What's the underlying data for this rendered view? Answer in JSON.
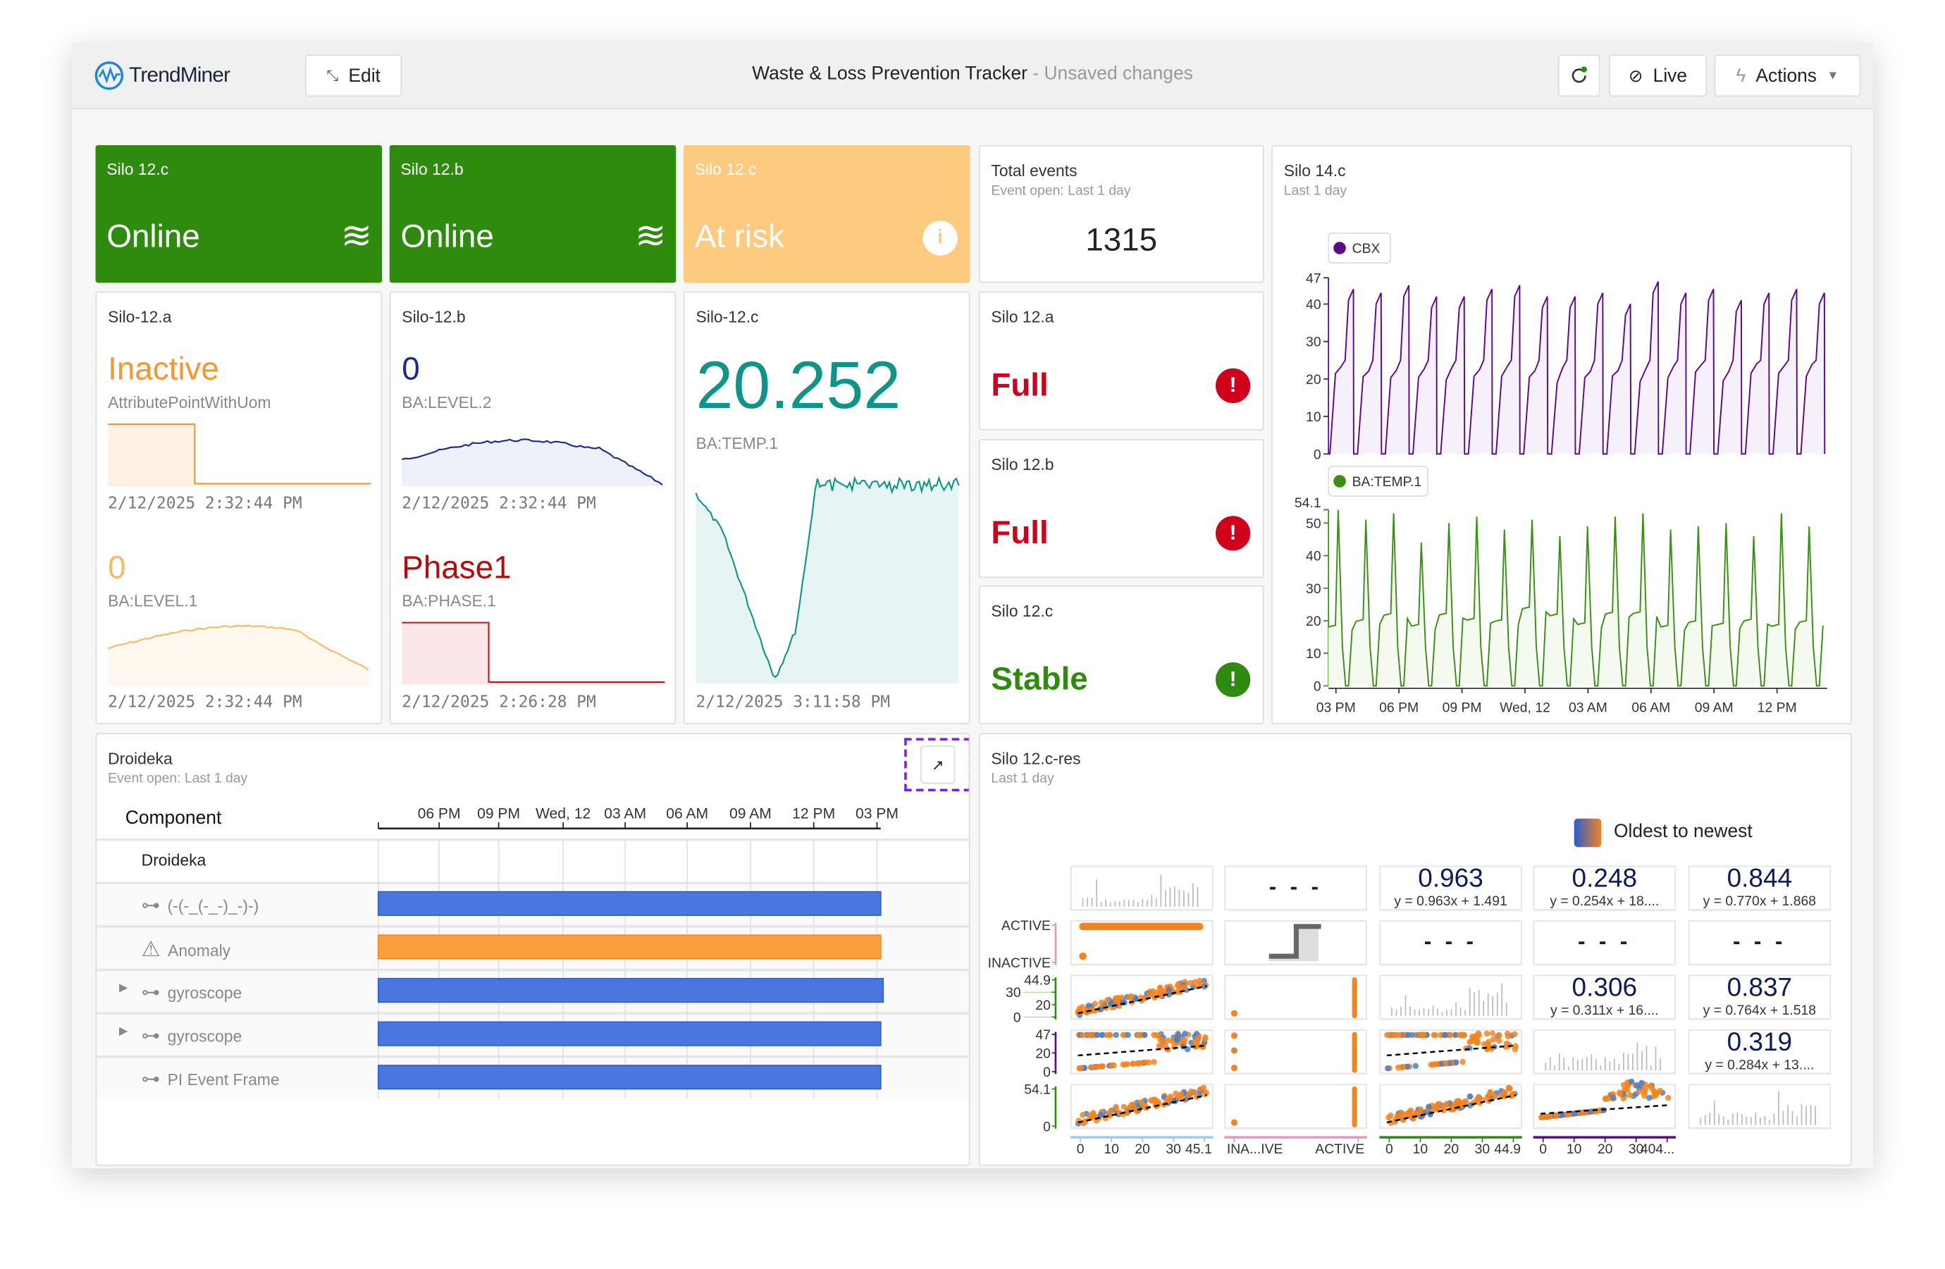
{
  "header": {
    "logo": "TrendMiner",
    "edit_label": "Edit",
    "title": "Waste & Loss Prevention Tracker",
    "status": "- Unsaved changes",
    "live_label": "Live",
    "actions_label": "Actions"
  },
  "colors": {
    "green": "#2e8b0e",
    "orange_tile": "#fdcb80",
    "orange": "#f7962f",
    "red": "#d0021b",
    "teal": "#0e9488",
    "navy": "#1a2a8c",
    "purple": "#5c0a8a",
    "bar_blue": "#4a76e0",
    "bar_orange": "#fb9e3c",
    "focus": "#7a1ff0"
  },
  "tiles": [
    {
      "title": "Silo 12.c",
      "value": "Online",
      "icon": "waves-icon"
    },
    {
      "title": "Silo 12.b",
      "value": "Online",
      "icon": "waves-icon"
    },
    {
      "title": "Silo 12.c",
      "value": "At risk",
      "icon": "info-icon"
    }
  ],
  "total_events": {
    "title": "Total events",
    "subtitle": "Event open: Last 1 day",
    "value": "1315"
  },
  "silo12a": {
    "title": "Silo-12.a",
    "v1": "Inactive",
    "l1": "AttributePointWithUom",
    "t1": "2/12/2025 2:32:44 PM",
    "v2": "0",
    "l2": "BA:LEVEL.1",
    "t2": "2/12/2025 2:32:44 PM"
  },
  "silo12b": {
    "title": "Silo-12.b",
    "v1": "0",
    "l1": "BA:LEVEL.2",
    "t1": "2/12/2025 2:32:44 PM",
    "v2": "Phase1",
    "l2": "BA:PHASE.1",
    "t2": "2/12/2025 2:26:28 PM"
  },
  "silo12c": {
    "title": "Silo-12.c",
    "value": "20.252",
    "label": "BA:TEMP.1",
    "time": "2/12/2025 3:11:58 PM"
  },
  "status_cards": [
    {
      "title": "Silo 12.a",
      "value": "Full",
      "icon": "alert-icon",
      "glyph": "!"
    },
    {
      "title": "Silo 12.b",
      "value": "Full",
      "icon": "alert-icon",
      "glyph": "!"
    },
    {
      "title": "Silo 12.c",
      "value": "Stable",
      "icon": "alert-icon",
      "glyph": "!"
    }
  ],
  "silo14c": {
    "title": "Silo 14.c",
    "subtitle": "Last 1 day",
    "series": [
      {
        "name": "CBX",
        "color": "#5c0a8a",
        "ymax": 47,
        "ticks": [
          "0",
          "10",
          "20",
          "30",
          "40",
          "47"
        ],
        "peaks": [
          44,
          43,
          45,
          42,
          42,
          44,
          45,
          42,
          42,
          43,
          40,
          46,
          43,
          44,
          41,
          43,
          44,
          43
        ]
      },
      {
        "name": "BA:TEMP.1",
        "color": "#3a8f14",
        "ymax": 54.1,
        "ticks": [
          "0",
          "10",
          "20",
          "30",
          "40",
          "50",
          "54.1"
        ],
        "peaks": [
          54,
          51,
          53,
          44,
          50,
          52,
          48,
          51,
          46,
          49,
          52,
          53,
          48,
          49,
          50,
          46,
          53,
          49
        ]
      }
    ],
    "xticks": [
      "03 PM",
      "06 PM",
      "09 PM",
      "Wed, 12",
      "03 AM",
      "06 AM",
      "09 AM",
      "12 PM"
    ]
  },
  "droideka": {
    "title": "Droideka",
    "subtitle": "Event open: Last 1 day",
    "column_header": "Component",
    "xticks": [
      "06 PM",
      "09 PM",
      "Wed, 12",
      "03 AM",
      "06 AM",
      "09 AM",
      "12 PM",
      "03 PM"
    ],
    "rows": [
      {
        "label": "Droideka",
        "icon": "",
        "expandable": false,
        "bar": ""
      },
      {
        "label": "(-(-_(-_-)_-)-)",
        "icon": "link-icon",
        "expandable": false,
        "bar": "blue"
      },
      {
        "label": "Anomaly",
        "icon": "warning-icon",
        "expandable": false,
        "bar": "orange"
      },
      {
        "label": "gyroscope",
        "icon": "link-icon",
        "expandable": true,
        "bar": "blue"
      },
      {
        "label": "gyroscope",
        "icon": "link-icon",
        "expandable": true,
        "bar": "blue"
      },
      {
        "label": "PI Event Frame",
        "icon": "link-icon",
        "expandable": false,
        "bar": "blue"
      }
    ]
  },
  "matrix": {
    "title": "Silo 12.c-res",
    "subtitle": "Last 1 day",
    "legend": "Oldest to newest",
    "row_labels": [
      [],
      [
        "ACTIVE",
        "INACTIVE"
      ],
      [
        "44.9",
        "30",
        "20",
        "0"
      ],
      [
        "47",
        "20",
        "0"
      ],
      [
        "54.1",
        "0"
      ]
    ],
    "col_labels": [
      [
        "0",
        "10",
        "20",
        "30",
        "45.1"
      ],
      [
        "INA...IVE",
        "ACTIVE"
      ],
      [
        "0",
        "10",
        "20",
        "30",
        "44.9"
      ],
      [
        "0",
        "10",
        "20",
        "30",
        "404..."
      ]
    ],
    "cells": [
      [
        {
          "t": "hist"
        },
        {
          "t": "dash",
          "v": "- - -"
        },
        {
          "t": "corr",
          "v": "0.963",
          "eq": "y = 0.963x + 1.491"
        },
        {
          "t": "corr",
          "v": "0.248",
          "eq": "y = 0.254x + 18...."
        },
        {
          "t": "corr",
          "v": "0.844",
          "eq": "y = 0.770x + 1.868"
        }
      ],
      [
        {
          "t": "binrow"
        },
        {
          "t": "step"
        },
        {
          "t": "dash",
          "v": "- - -"
        },
        {
          "t": "dash",
          "v": "- - -"
        },
        {
          "t": "dash",
          "v": "- - -"
        }
      ],
      [
        {
          "t": "scatter"
        },
        {
          "t": "bincol"
        },
        {
          "t": "hist"
        },
        {
          "t": "corr",
          "v": "0.306",
          "eq": "y = 0.311x + 16...."
        },
        {
          "t": "corr",
          "v": "0.837",
          "eq": "y = 0.764x + 1.518"
        }
      ],
      [
        {
          "t": "fork"
        },
        {
          "t": "bincol"
        },
        {
          "t": "fork"
        },
        {
          "t": "hist"
        },
        {
          "t": "corr",
          "v": "0.319",
          "eq": "y = 0.284x + 13...."
        }
      ],
      [
        {
          "t": "scatter"
        },
        {
          "t": "bincol"
        },
        {
          "t": "scatter"
        },
        {
          "t": "hump"
        },
        {
          "t": "hist"
        }
      ]
    ]
  }
}
